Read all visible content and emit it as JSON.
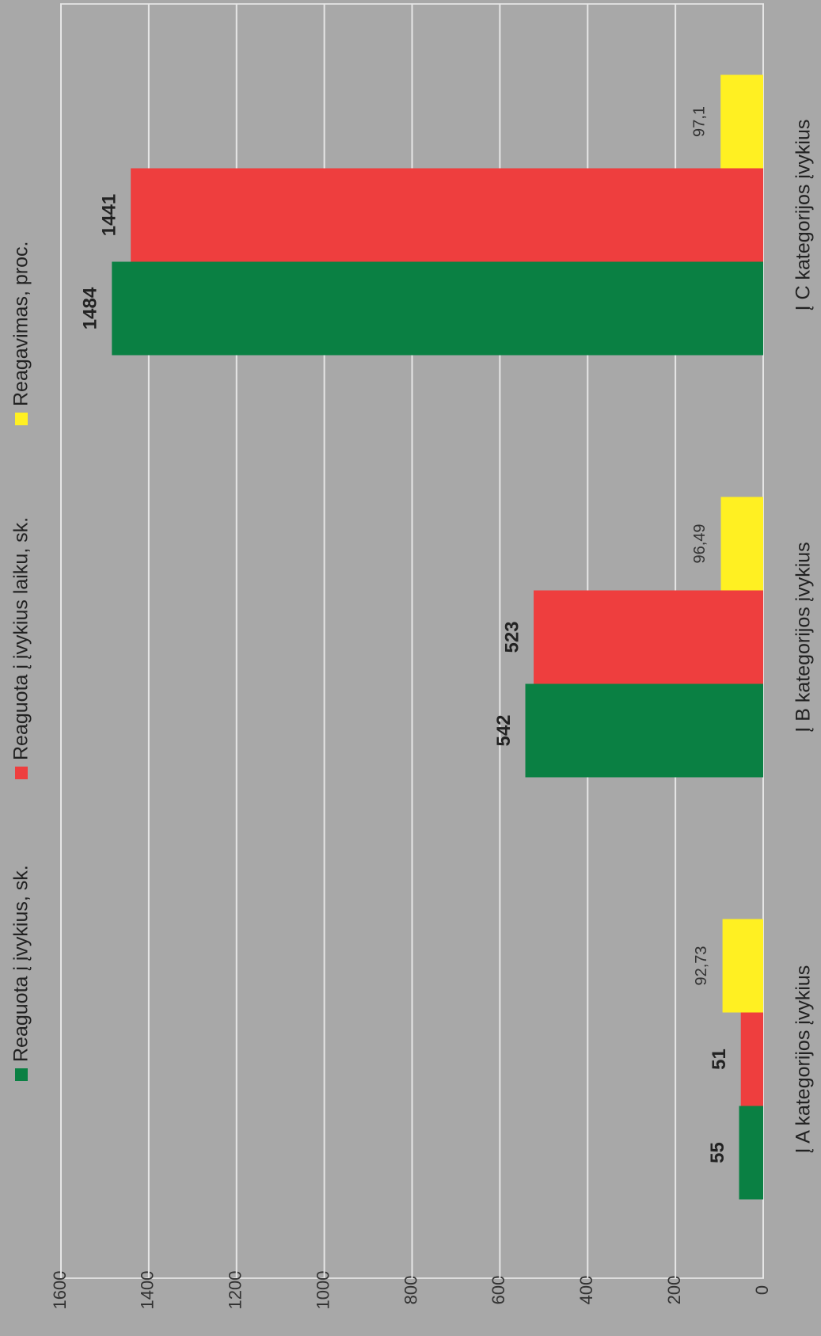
{
  "chart_data": {
    "type": "bar",
    "categories": [
      "Į A kategorijos įvykius",
      "Į B kategorijos įvykius",
      "Į C kategorijos įvykius"
    ],
    "series": [
      {
        "name": "Reaguota į įvykius, sk.",
        "color": "#0a8043",
        "values": [
          55,
          542,
          1484
        ]
      },
      {
        "name": "Reaguota į įvykius laiku, sk.",
        "color": "#ee3e3e",
        "values": [
          51,
          523,
          1441
        ]
      },
      {
        "name": "Reagavimas, proc.",
        "color": "#fff022",
        "values": [
          92.73,
          96.49,
          97.1
        ],
        "value_labels": [
          "92,73",
          "96,49",
          "97,1"
        ]
      }
    ],
    "ylim": [
      0,
      1600
    ],
    "yticks": [
      0,
      200,
      400,
      600,
      800,
      1000,
      1200,
      1400,
      1600
    ],
    "grid": true,
    "legend": "top"
  }
}
